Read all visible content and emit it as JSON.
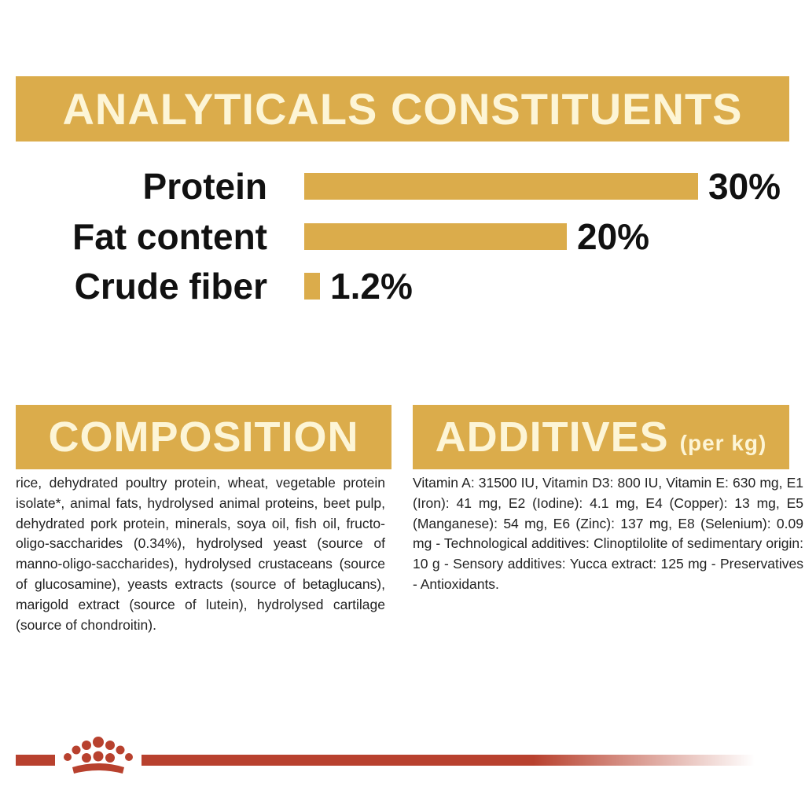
{
  "chart_data": {
    "type": "bar",
    "title": "ANALYTICALS CONSTITUENTS",
    "categories": [
      "Protein",
      "Fat content",
      "Crude fiber"
    ],
    "values": [
      30,
      20,
      1.2
    ],
    "value_labels": [
      "30%",
      "20%",
      "1.2%"
    ],
    "color": "#dbac4b"
  },
  "composition": {
    "title": "COMPOSITION",
    "text": "rice, dehydrated poultry protein, wheat, vegetable protein isolate*, animal fats, hydrolysed animal proteins, beet pulp, dehydrated pork protein, minerals, soya oil, fish oil, fructo-oligo-saccharides (0.34%), hydrolysed yeast (source of manno-oligo-saccharides), hydrolysed crustaceans (source of glucosamine), yeasts extracts (source of betaglucans), marigold extract (source of lutein), hydrolysed cartilage (source of chondroitin)."
  },
  "additives": {
    "title": "ADDITIVES",
    "subtitle": "(per kg)",
    "text": "Vitamin A: 31500 IU, Vitamin D3: 800 IU, Vitamin E: 630 mg, E1 (Iron): 41 mg, E2 (Iodine): 4.1 mg, E4 (Copper): 13 mg, E5 (Manganese): 54 mg, E6 (Zinc): 137 mg, E8 (Selenium): 0.09 mg - Technological additives: Clinoptilolite of sedimentary origin: 10 g - Sensory additives: Yucca extract: 125 mg - Preservatives - Antioxidants."
  }
}
